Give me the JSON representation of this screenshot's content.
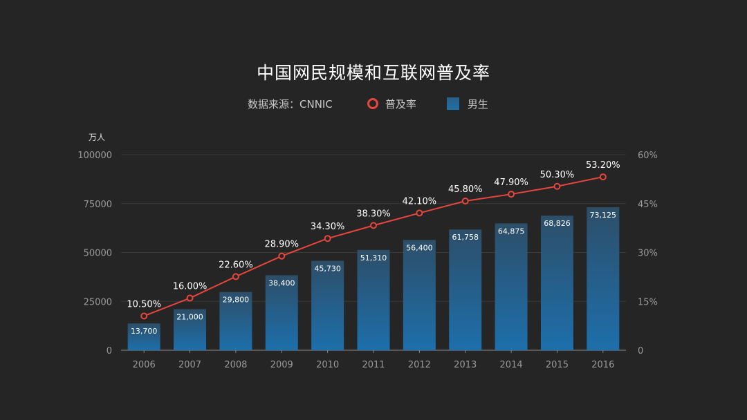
{
  "title": "中国网民规模和互联网普及率",
  "source": "数据来源：CNNIC",
  "legend": {
    "line_label": "普及率",
    "bar_label": "男生"
  },
  "colors": {
    "background": "#252525",
    "line": "#e8463d",
    "bar_top": "#2d4e68",
    "bar_bottom": "#1d6fab"
  },
  "chart_data": {
    "type": "bar+line",
    "categories": [
      "2006",
      "2007",
      "2008",
      "2009",
      "2010",
      "2011",
      "2012",
      "2013",
      "2014",
      "2015",
      "2016"
    ],
    "series": [
      {
        "name": "男生",
        "type": "bar",
        "axis": "left",
        "values": [
          13700,
          21000,
          29800,
          38400,
          45730,
          51310,
          56400,
          61758,
          64875,
          68826,
          73125
        ],
        "labels": [
          "13,700",
          "21,000",
          "29,800",
          "38,400",
          "45,730",
          "51,310",
          "56,400",
          "61,758",
          "64,875",
          "68,826",
          "73,125"
        ]
      },
      {
        "name": "普及率",
        "type": "line",
        "axis": "right",
        "values": [
          10.5,
          16.0,
          22.6,
          28.9,
          34.3,
          38.3,
          42.1,
          45.8,
          47.9,
          50.3,
          53.2
        ],
        "labels": [
          "10.50%",
          "16.00%",
          "22.60%",
          "28.90%",
          "34.30%",
          "38.30%",
          "42.10%",
          "45.80%",
          "47.90%",
          "50.30%",
          "53.20%"
        ]
      }
    ],
    "left_axis": {
      "unit": "万人",
      "ticks": [
        "0",
        "25000",
        "50000",
        "75000",
        "100000"
      ],
      "values": [
        0,
        25000,
        50000,
        75000,
        100000
      ],
      "ylim": [
        0,
        100000
      ]
    },
    "right_axis": {
      "ticks": [
        "0",
        "15%",
        "30%",
        "45%",
        "60%"
      ],
      "values": [
        0,
        15,
        30,
        45,
        60
      ],
      "ylim": [
        0,
        60
      ]
    },
    "grid": true
  }
}
